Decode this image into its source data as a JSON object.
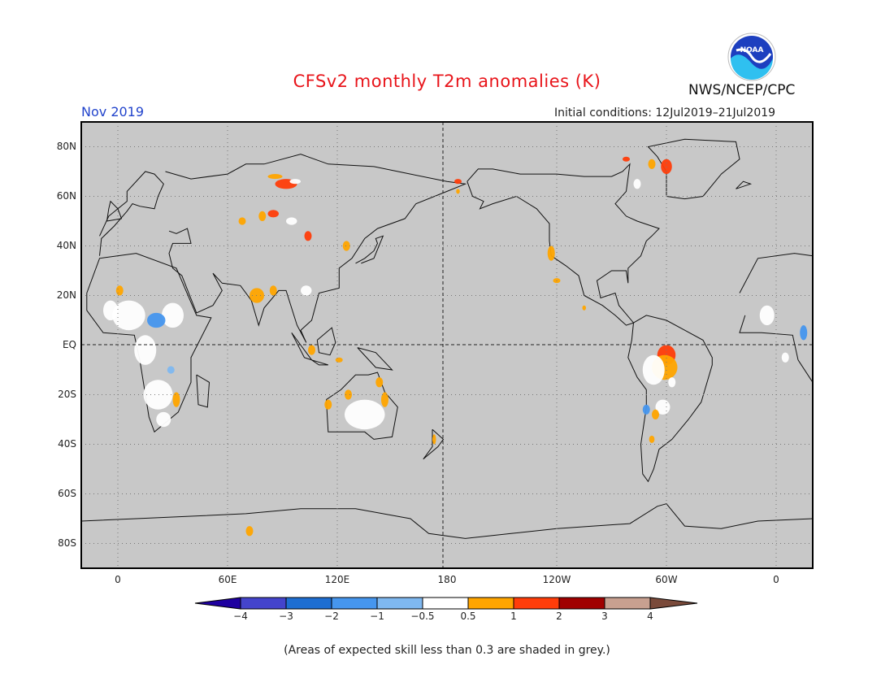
{
  "header": {
    "title": "CFSv2 monthly T2m anomalies (K)",
    "month": "Nov 2019",
    "initial_conditions": "Initial conditions: 12Jul2019–21Jul2019",
    "agency": "NWS/NCEP/CPC",
    "logo_text": "NOAA"
  },
  "map": {
    "lat_labels": [
      "80N",
      "60N",
      "40N",
      "20N",
      "EQ",
      "20S",
      "40S",
      "60S",
      "80S"
    ],
    "lon_labels": [
      "0",
      "60E",
      "120E",
      "180",
      "120W",
      "60W",
      "0"
    ],
    "lon_range": [
      -20,
      380
    ],
    "lat_range": [
      -90,
      90
    ],
    "background_color": "#c8c8c8",
    "anomaly_regions": [
      {
        "name": "Amazon",
        "level": "1 to 2",
        "color": "#ff3d0a"
      },
      {
        "name": "East Brazil",
        "level": "0.5 to 1",
        "color": "#ffa500"
      },
      {
        "name": "North Siberia",
        "level": "1 to 2",
        "color": "#ff3d0a"
      },
      {
        "name": "Greenland",
        "level": "1 to 2",
        "color": "#ff3d0a"
      },
      {
        "name": "Central Africa",
        "level": "-1 to -0.5",
        "color": "#7fb8f0"
      },
      {
        "name": "Australia",
        "level": "-0.5 to 0.5",
        "color": "#ffffff"
      }
    ]
  },
  "colorbar": {
    "labels": [
      "−4",
      "−3",
      "−2",
      "−1",
      "−0.5",
      "0.5",
      "1",
      "2",
      "3",
      "4"
    ],
    "colors": [
      "#1e00a0",
      "#4444cc",
      "#1e6ed2",
      "#4696ee",
      "#7fb8f0",
      "#ffffff",
      "#ffa500",
      "#ff3d0a",
      "#a00000",
      "#c8a090",
      "#7a4a3a"
    ]
  },
  "footer": {
    "note": "(Areas of expected skill less than 0.3 are shaded in grey.)"
  }
}
